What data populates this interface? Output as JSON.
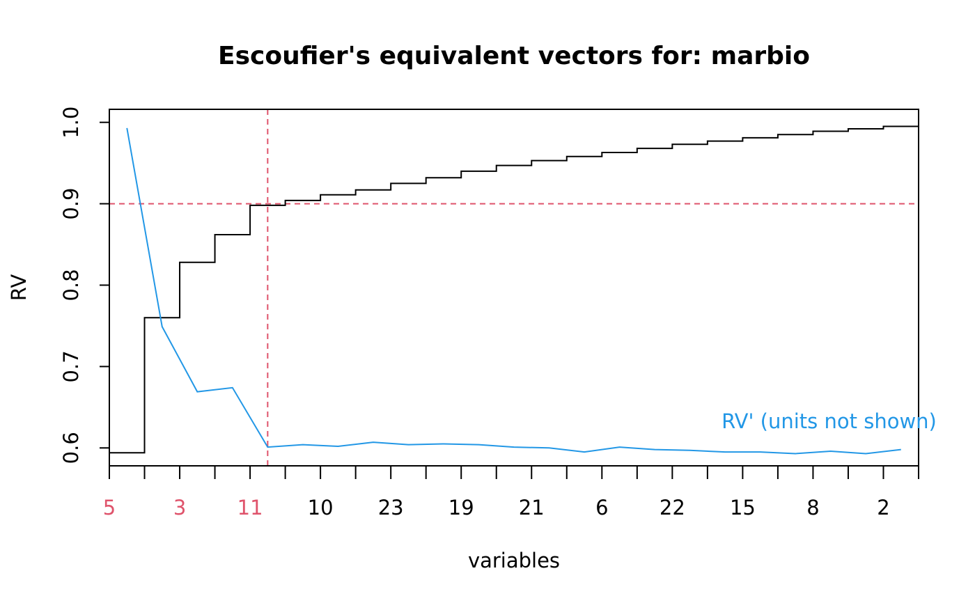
{
  "chart_data": {
    "type": "line",
    "title": "Escoufier's equivalent vectors for: marbio",
    "xlabel": "variables",
    "ylabel": "RV",
    "ylim": [
      0.578,
      1.016
    ],
    "yticks": [
      0.6,
      0.7,
      0.8,
      0.9,
      1.0
    ],
    "ytick_labels": [
      "0.6",
      "0.7",
      "0.8",
      "0.9",
      "1.0"
    ],
    "x_positions": 23,
    "xtick_labels": [
      {
        "pos": 1,
        "label": "5",
        "color": "#DF536B"
      },
      {
        "pos": 3,
        "label": "3",
        "color": "#DF536B"
      },
      {
        "pos": 5,
        "label": "11",
        "color": "#DF536B"
      },
      {
        "pos": 7,
        "label": "10",
        "color": "#000000"
      },
      {
        "pos": 9,
        "label": "23",
        "color": "#000000"
      },
      {
        "pos": 11,
        "label": "19",
        "color": "#000000"
      },
      {
        "pos": 13,
        "label": "21",
        "color": "#000000"
      },
      {
        "pos": 15,
        "label": "6",
        "color": "#000000"
      },
      {
        "pos": 17,
        "label": "22",
        "color": "#000000"
      },
      {
        "pos": 19,
        "label": "15",
        "color": "#000000"
      },
      {
        "pos": 21,
        "label": "8",
        "color": "#000000"
      },
      {
        "pos": 23,
        "label": "2",
        "color": "#000000"
      }
    ],
    "series": [
      {
        "key": "rv",
        "style": "step",
        "color": "#000000",
        "values": [
          0.594,
          0.76,
          0.828,
          0.862,
          0.898,
          0.904,
          0.911,
          0.917,
          0.925,
          0.932,
          0.94,
          0.947,
          0.953,
          0.958,
          0.963,
          0.968,
          0.973,
          0.977,
          0.981,
          0.985,
          0.989,
          0.992,
          0.995
        ]
      },
      {
        "key": "rv_prime",
        "name": "RV' (units not shown)",
        "style": "line",
        "color": "#2297E6",
        "values": [
          0.993,
          0.749,
          0.669,
          0.674,
          0.601,
          0.604,
          0.602,
          0.607,
          0.604,
          0.605,
          0.604,
          0.601,
          0.6,
          0.595,
          0.601,
          0.598,
          0.597,
          0.595,
          0.595,
          0.593,
          0.596,
          0.593,
          0.598
        ]
      }
    ],
    "threshold": {
      "value": 0.9,
      "color": "#DF536B",
      "style": "dashed"
    },
    "cutoff_after_position": 5,
    "annotation": {
      "text": "RV' (units not shown)",
      "color": "#2297E6",
      "anchor_pos": 18.4,
      "anchor_y": 0.624
    }
  }
}
